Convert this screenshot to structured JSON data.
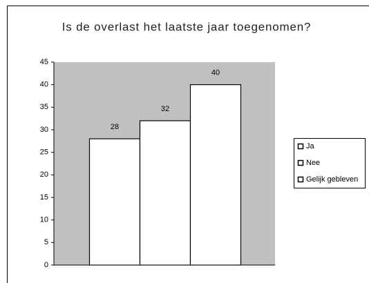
{
  "chart_data": {
    "type": "bar",
    "title": "Is de overlast het laatste jaar toegenomen?",
    "series": [
      {
        "name": "Ja",
        "color": "#ffffff",
        "values": [
          28
        ]
      },
      {
        "name": "Nee",
        "color": "#ffffff",
        "values": [
          32
        ]
      },
      {
        "name": "Gelijk gebleven",
        "color": "#ffffff",
        "values": [
          40
        ]
      }
    ],
    "ylim": [
      0,
      45
    ],
    "yticks": [
      0,
      5,
      10,
      15,
      20,
      25,
      30,
      35,
      40,
      45
    ],
    "plot_background": "#c0c0c0",
    "legend": "right"
  }
}
